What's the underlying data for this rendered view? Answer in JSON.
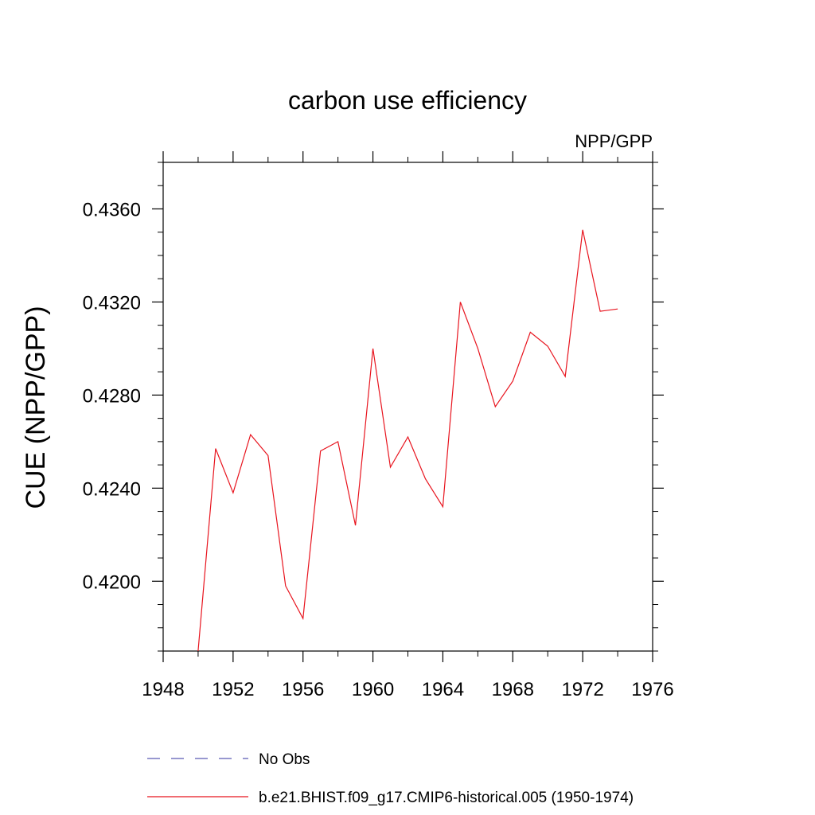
{
  "chart_data": {
    "type": "line",
    "title": "carbon use efficiency",
    "subtitle": "NPP/GPP",
    "xlabel": "",
    "ylabel": "CUE  (NPP/GPP)",
    "xlim": [
      1948,
      1976
    ],
    "ylim": [
      0.417,
      0.438
    ],
    "xticks": [
      1948,
      1952,
      1956,
      1960,
      1964,
      1968,
      1972,
      1976
    ],
    "yticks": [
      0.42,
      0.424,
      0.428,
      0.432,
      0.436
    ],
    "ytick_labels": [
      "0.4200",
      "0.4240",
      "0.4280",
      "0.4320",
      "0.4360"
    ],
    "grid": false,
    "series": [
      {
        "name": "b.e21.BHIST.f09_g17.CMIP6-historical.005 (1950-1974)",
        "color": "#e8141e",
        "style": "solid",
        "x": [
          1950,
          1951,
          1952,
          1953,
          1954,
          1955,
          1956,
          1957,
          1958,
          1959,
          1960,
          1961,
          1962,
          1963,
          1964,
          1965,
          1966,
          1967,
          1968,
          1969,
          1970,
          1971,
          1972,
          1973,
          1974
        ],
        "values": [
          0.417,
          0.4257,
          0.4238,
          0.4263,
          0.4254,
          0.4198,
          0.4184,
          0.4256,
          0.426,
          0.4224,
          0.43,
          0.4249,
          0.4262,
          0.4244,
          0.4232,
          0.432,
          0.43,
          0.4275,
          0.4286,
          0.4307,
          0.4301,
          0.4288,
          0.4351,
          0.4316,
          0.4317
        ]
      }
    ],
    "legend": [
      {
        "label": "No Obs",
        "color": "#5a5ab4",
        "style": "dashed"
      },
      {
        "label": "b.e21.BHIST.f09_g17.CMIP6-historical.005 (1950-1974)",
        "color": "#e8141e",
        "style": "solid"
      }
    ],
    "legend_position": "bottom"
  }
}
